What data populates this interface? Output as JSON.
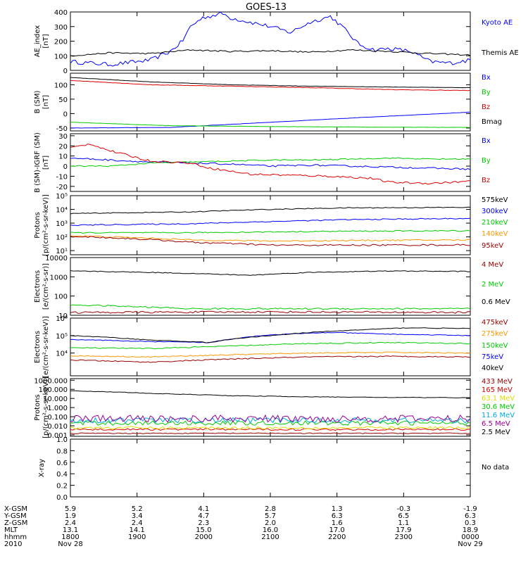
{
  "title": "GOES-13",
  "colors": {
    "black": "#000000",
    "blue": "#0000ff",
    "green": "#00cc00",
    "red": "#dd0000",
    "darkred": "#990000",
    "orange": "#ff9900",
    "yellow": "#dddd00",
    "cyan": "#00aadd",
    "purple": "#990099"
  },
  "chart_data": [
    {
      "type": "line",
      "ylabel": "AE_index\n[nT]",
      "ylim": [
        0,
        400
      ],
      "scale": "linear",
      "yticks": [
        "0",
        "100",
        "200",
        "300",
        "400"
      ],
      "ytick_values": [
        0,
        100,
        200,
        300,
        400
      ],
      "series": [
        {
          "name": "Kyoto AE",
          "color": "blue",
          "noise": 14,
          "x": [
            0,
            0.1,
            0.2,
            0.25,
            0.28,
            0.3,
            0.33,
            0.38,
            0.4,
            0.45,
            0.5,
            0.55,
            0.6,
            0.65,
            0.68,
            0.72,
            0.76,
            0.8,
            0.85,
            0.9,
            0.95,
            1.0
          ],
          "y": [
            60,
            40,
            70,
            130,
            200,
            300,
            360,
            390,
            360,
            330,
            300,
            260,
            330,
            370,
            300,
            180,
            140,
            150,
            130,
            60,
            50,
            70
          ]
        },
        {
          "name": "Themis AE",
          "color": "black",
          "noise": 5,
          "x": [
            0,
            0.1,
            0.2,
            0.3,
            0.4,
            0.5,
            0.6,
            0.7,
            0.8,
            0.9,
            1.0
          ],
          "y": [
            100,
            120,
            115,
            140,
            130,
            135,
            125,
            140,
            130,
            115,
            105
          ]
        }
      ]
    },
    {
      "type": "line",
      "ylabel": "B (SM)\n[nT]",
      "ylim": [
        -60,
        140
      ],
      "scale": "linear",
      "yticks": [
        "-50",
        "0",
        "50",
        "100"
      ],
      "ytick_values": [
        -50,
        0,
        50,
        100
      ],
      "series": [
        {
          "name": "Bx",
          "color": "blue",
          "noise": 0.4,
          "x": [
            0,
            0.25,
            0.5,
            0.75,
            1.0
          ],
          "y": [
            -50,
            -48,
            -30,
            -12,
            5
          ]
        },
        {
          "name": "By",
          "color": "green",
          "noise": 0.4,
          "x": [
            0,
            0.25,
            0.5,
            0.75,
            1.0
          ],
          "y": [
            -30,
            -42,
            -45,
            -47,
            -48
          ]
        },
        {
          "name": "Bz",
          "color": "red",
          "noise": 0.8,
          "x": [
            0,
            0.2,
            0.4,
            0.6,
            0.8,
            1.0
          ],
          "y": [
            115,
            100,
            95,
            90,
            83,
            80
          ]
        },
        {
          "name": "Bmag",
          "color": "black",
          "noise": 0.5,
          "x": [
            0,
            0.2,
            0.4,
            0.6,
            0.8,
            1.0
          ],
          "y": [
            125,
            110,
            100,
            95,
            92,
            90
          ]
        }
      ]
    },
    {
      "type": "line",
      "ylabel": "B (SM)-IGRF (SM)\n[nT]",
      "ylim": [
        -25,
        32
      ],
      "scale": "linear",
      "yticks": [
        "-20",
        "-10",
        "0",
        "10",
        "20",
        "30"
      ],
      "ytick_values": [
        -20,
        -10,
        0,
        10,
        20,
        30
      ],
      "series": [
        {
          "name": "Bx",
          "color": "blue",
          "noise": 0.8,
          "x": [
            0,
            0.1,
            0.2,
            0.3,
            0.4,
            0.5,
            0.6,
            0.7,
            0.8,
            0.9,
            1.0
          ],
          "y": [
            8,
            6,
            4,
            3,
            2,
            0,
            1,
            0,
            -1,
            -2,
            -3
          ]
        },
        {
          "name": "By",
          "color": "green",
          "noise": 0.6,
          "x": [
            0,
            0.1,
            0.2,
            0.3,
            0.4,
            0.5,
            0.6,
            0.7,
            0.8,
            0.9,
            1.0
          ],
          "y": [
            0,
            0,
            3,
            4,
            5,
            6,
            6,
            7,
            8,
            7,
            7
          ]
        },
        {
          "name": "Bz",
          "color": "red",
          "noise": 1.0,
          "x": [
            0,
            0.05,
            0.1,
            0.2,
            0.3,
            0.35,
            0.45,
            0.55,
            0.65,
            0.75,
            0.8,
            0.9,
            1.0
          ],
          "y": [
            18,
            22,
            15,
            5,
            3,
            -2,
            -8,
            -9,
            -10,
            -12,
            -16,
            -17,
            -15
          ]
        }
      ]
    },
    {
      "type": "line",
      "ylabel": "Protons\n[p/(cm²-s-sr-keV)]",
      "ylim": [
        5,
        100000
      ],
      "scale": "log",
      "yticks": [
        "10¹",
        "10²",
        "10³",
        "10⁴",
        "10⁵"
      ],
      "ytick_values": [
        10,
        100,
        1000,
        10000,
        100000
      ],
      "series": [
        {
          "name": "575keV",
          "color": "black",
          "noise": 0.03,
          "x": [
            0,
            0.3,
            0.5,
            0.7,
            1.0
          ],
          "y": [
            5000,
            6500,
            10000,
            13000,
            14000
          ]
        },
        {
          "name": "300keV",
          "color": "blue",
          "noise": 0.04,
          "x": [
            0,
            0.3,
            0.5,
            0.7,
            1.0
          ],
          "y": [
            700,
            900,
            1300,
            1800,
            2200
          ]
        },
        {
          "name": "210keV",
          "color": "green",
          "noise": 0.04,
          "x": [
            0,
            0.3,
            0.5,
            0.7,
            1.0
          ],
          "y": [
            200,
            200,
            230,
            260,
            280
          ]
        },
        {
          "name": "140keV",
          "color": "orange",
          "noise": 0.05,
          "x": [
            0,
            0.3,
            0.5,
            0.7,
            1.0
          ],
          "y": [
            120,
            60,
            50,
            55,
            60
          ]
        },
        {
          "name": "95keV",
          "color": "darkred",
          "noise": 0.06,
          "x": [
            0,
            0.3,
            0.5,
            0.7,
            1.0
          ],
          "y": [
            110,
            40,
            25,
            25,
            26
          ]
        }
      ]
    },
    {
      "type": "line",
      "ylabel": "Electrons\n[e/(cm²-s-sr)]",
      "ylim": [
        10,
        10000
      ],
      "scale": "log",
      "yticks": [
        "10",
        "100",
        "1000",
        "10000"
      ],
      "ytick_values": [
        10,
        100,
        1000,
        10000
      ],
      "series": [
        {
          "name": "4 MeV",
          "color": "darkred",
          "noise": 0.05,
          "x": [
            0,
            0.5,
            1.0
          ],
          "y": [
            14,
            15,
            14
          ]
        },
        {
          "name": "2 MeV",
          "color": "green",
          "noise": 0.04,
          "x": [
            0,
            0.3,
            1.0
          ],
          "y": [
            35,
            22,
            22
          ]
        },
        {
          "name": "0.6 MeV",
          "color": "black",
          "noise": 0.02,
          "x": [
            0,
            0.2,
            0.35,
            0.45,
            0.6,
            0.8,
            1.0
          ],
          "y": [
            2000,
            1700,
            1400,
            1200,
            1700,
            2000,
            1900
          ]
        }
      ]
    },
    {
      "type": "line",
      "ylabel": "Electrons\n[e/(cm²-s-sr-keV)]",
      "ylim": [
        500,
        1000000
      ],
      "scale": "log",
      "yticks": [
        "10⁴",
        "10⁵",
        "10⁶"
      ],
      "ytick_values": [
        10000,
        100000,
        1000000
      ],
      "series": [
        {
          "name": "475keV",
          "color": "darkred",
          "noise": 0.03,
          "x": [
            0,
            0.2,
            0.4,
            0.6,
            0.8,
            1.0
          ],
          "y": [
            4000,
            3000,
            4500,
            6000,
            6500,
            6000
          ]
        },
        {
          "name": "275keV",
          "color": "orange",
          "noise": 0.03,
          "x": [
            0,
            0.2,
            0.4,
            0.6,
            0.8,
            1.0
          ],
          "y": [
            7000,
            6000,
            8000,
            10000,
            11000,
            10000
          ]
        },
        {
          "name": "150keV",
          "color": "green",
          "noise": 0.03,
          "x": [
            0,
            0.2,
            0.4,
            0.6,
            0.8,
            1.0
          ],
          "y": [
            20000,
            18000,
            25000,
            35000,
            40000,
            35000
          ]
        },
        {
          "name": "75keV",
          "color": "blue",
          "noise": 0.02,
          "x": [
            0,
            0.2,
            0.35,
            0.5,
            0.65,
            0.8,
            1.0
          ],
          "y": [
            60000,
            45000,
            40000,
            110000,
            150000,
            120000,
            100000
          ]
        },
        {
          "name": "40keV",
          "color": "black",
          "noise": 0.02,
          "x": [
            0,
            0.2,
            0.35,
            0.5,
            0.7,
            0.85,
            1.0
          ],
          "y": [
            100000,
            55000,
            40000,
            100000,
            200000,
            280000,
            250000
          ]
        }
      ]
    },
    {
      "type": "line",
      "ylabel": "Protons\n[p/(cm²-s-sr-keV)]",
      "ylim": [
        0.0007,
        1500
      ],
      "scale": "log",
      "yticks": [
        "0.001",
        "0.010",
        "0.100",
        "1.000",
        "10.000",
        "100.000",
        "1000.000"
      ],
      "ytick_values": [
        0.001,
        0.01,
        0.1,
        1,
        10,
        100,
        1000
      ],
      "series": [
        {
          "name": "433 MeV",
          "color": "darkred",
          "noise": 0.05,
          "x": [
            0,
            1.0
          ],
          "y": [
            0.0015,
            0.0015
          ]
        },
        {
          "name": "165 MeV",
          "color": "red",
          "noise": 0.1,
          "x": [
            0,
            1.0
          ],
          "y": [
            0.004,
            0.004
          ]
        },
        {
          "name": "63.1 MeV",
          "color": "yellow",
          "noise": 0.15,
          "x": [
            0,
            1.0
          ],
          "y": [
            0.006,
            0.006
          ]
        },
        {
          "name": "30.6 MeV",
          "color": "green",
          "noise": 0.25,
          "x": [
            0,
            1.0
          ],
          "y": [
            0.02,
            0.02
          ]
        },
        {
          "name": "11.6 MeV",
          "color": "cyan",
          "noise": 0.3,
          "x": [
            0,
            1.0
          ],
          "y": [
            0.04,
            0.04
          ]
        },
        {
          "name": "6.5 MeV",
          "color": "purple",
          "noise": 0.4,
          "x": [
            0,
            1.0
          ],
          "y": [
            0.06,
            0.06
          ]
        },
        {
          "name": "2.5 MeV",
          "color": "black",
          "noise": 0.03,
          "x": [
            0,
            0.2,
            0.4,
            0.6,
            0.8,
            1.0
          ],
          "y": [
            70,
            35,
            20,
            15,
            13,
            12
          ]
        }
      ]
    },
    {
      "type": "line",
      "ylabel": "X-ray",
      "ylim": [
        0,
        1.0
      ],
      "scale": "linear",
      "yticks": [
        "0.0",
        "0.2",
        "0.4",
        "0.6",
        "0.8",
        "1.0"
      ],
      "ytick_values": [
        0,
        0.2,
        0.4,
        0.6,
        0.8,
        1.0
      ],
      "series": [],
      "legend_text": "No data"
    }
  ],
  "x_axis": {
    "rows": [
      {
        "label": "X-GSM",
        "values": [
          "5.9",
          "5.2",
          "4.1",
          "2.8",
          "1.3",
          "-0.3",
          "-1.9"
        ]
      },
      {
        "label": "Y-GSM",
        "values": [
          "1.9",
          "3.4",
          "4.7",
          "5.7",
          "6.3",
          "6.5",
          "6.3"
        ]
      },
      {
        "label": "Z-GSM",
        "values": [
          "2.4",
          "2.4",
          "2.3",
          "2.0",
          "1.6",
          "1.1",
          "0.3"
        ]
      },
      {
        "label": "MLT",
        "values": [
          "13.1",
          "14.1",
          "15.0",
          "16.0",
          "17.0",
          "17.9",
          "18.9"
        ]
      },
      {
        "label": "hhmm",
        "values": [
          "1800",
          "1900",
          "2000",
          "2100",
          "2200",
          "2300",
          "0000"
        ]
      },
      {
        "label": "2010",
        "values": [
          "Nov 28",
          "",
          "",
          "",
          "",
          "",
          "Nov 29"
        ]
      }
    ]
  }
}
